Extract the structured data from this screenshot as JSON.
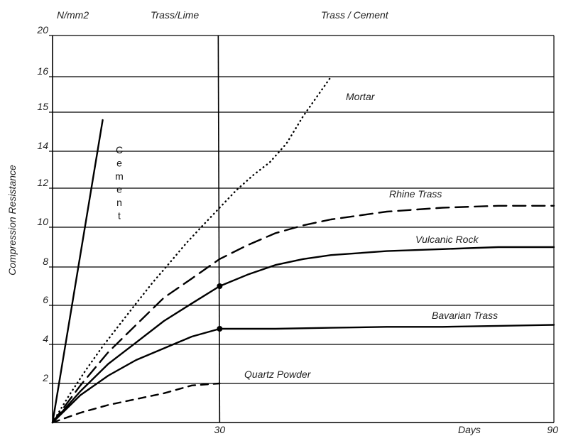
{
  "chart_data": {
    "type": "line",
    "headers": {
      "unit": "N/mm2",
      "left": "Trass/Lime",
      "right": "Trass / Cement"
    },
    "ylabel": "Compression Resistance",
    "xlabel": "Days",
    "xlim": [
      0,
      90
    ],
    "x_ticks": [
      "30",
      "90"
    ],
    "y_ticks": [
      {
        "value": 2,
        "label": "2"
      },
      {
        "value": 4,
        "label": "4"
      },
      {
        "value": 6,
        "label": "6"
      },
      {
        "value": 8,
        "label": "8"
      },
      {
        "value": 10,
        "label": "10"
      },
      {
        "value": 12,
        "label": "12"
      },
      {
        "value": 14,
        "label": "14"
      },
      {
        "value": 15,
        "label": "15"
      },
      {
        "value": 16,
        "label": "16"
      },
      {
        "value": 20,
        "label": "20"
      }
    ],
    "divider_x": 30,
    "series": [
      {
        "name": "Cement",
        "style": "solid",
        "label_style": "vertical",
        "label_letters": [
          "C",
          "e",
          "m",
          "e",
          "n",
          "t"
        ],
        "x": [
          0,
          9
        ],
        "y": [
          0,
          14.8
        ]
      },
      {
        "name": "Mortar",
        "style": "dotted",
        "x": [
          0,
          3,
          6,
          9,
          12,
          15,
          18,
          21,
          24,
          27,
          30,
          33,
          36,
          39,
          42,
          45,
          50
        ],
        "y": [
          0,
          1.4,
          2.7,
          3.9,
          5.0,
          6.1,
          7.2,
          8.2,
          9.2,
          10.1,
          11.0,
          11.9,
          12.7,
          13.4,
          14.2,
          14.9,
          16.0
        ]
      },
      {
        "name": "Rhine Trass",
        "style": "dashed",
        "x": [
          0,
          5,
          10,
          15,
          20,
          25,
          30,
          35,
          40,
          45,
          50,
          60,
          70,
          80,
          90
        ],
        "y": [
          0,
          1.9,
          3.6,
          5.0,
          6.4,
          7.4,
          8.4,
          9.1,
          9.7,
          10.1,
          10.4,
          10.8,
          11.0,
          11.1,
          11.1
        ]
      },
      {
        "name": "Vulcanic Rock",
        "style": "solid",
        "markers_at": [
          30
        ],
        "x": [
          0,
          5,
          10,
          15,
          20,
          25,
          30,
          35,
          40,
          45,
          50,
          60,
          70,
          80,
          90
        ],
        "y": [
          0,
          1.6,
          3.0,
          4.1,
          5.2,
          6.1,
          7.0,
          7.6,
          8.1,
          8.4,
          8.6,
          8.8,
          8.9,
          9.0,
          9.0
        ]
      },
      {
        "name": "Bavarian Trass",
        "style": "solid",
        "markers_at": [
          30
        ],
        "x": [
          0,
          5,
          10,
          15,
          20,
          25,
          30,
          40,
          50,
          60,
          70,
          80,
          90
        ],
        "y": [
          0,
          1.4,
          2.4,
          3.2,
          3.8,
          4.4,
          4.8,
          4.8,
          4.85,
          4.9,
          4.9,
          4.95,
          5.0
        ]
      },
      {
        "name": "Quartz Powder",
        "style": "shortdash",
        "x": [
          0,
          5,
          10,
          15,
          20,
          25,
          30
        ],
        "y": [
          0,
          0.5,
          0.9,
          1.2,
          1.5,
          1.9,
          2.0
        ]
      }
    ],
    "grid": true,
    "legend": "none"
  }
}
